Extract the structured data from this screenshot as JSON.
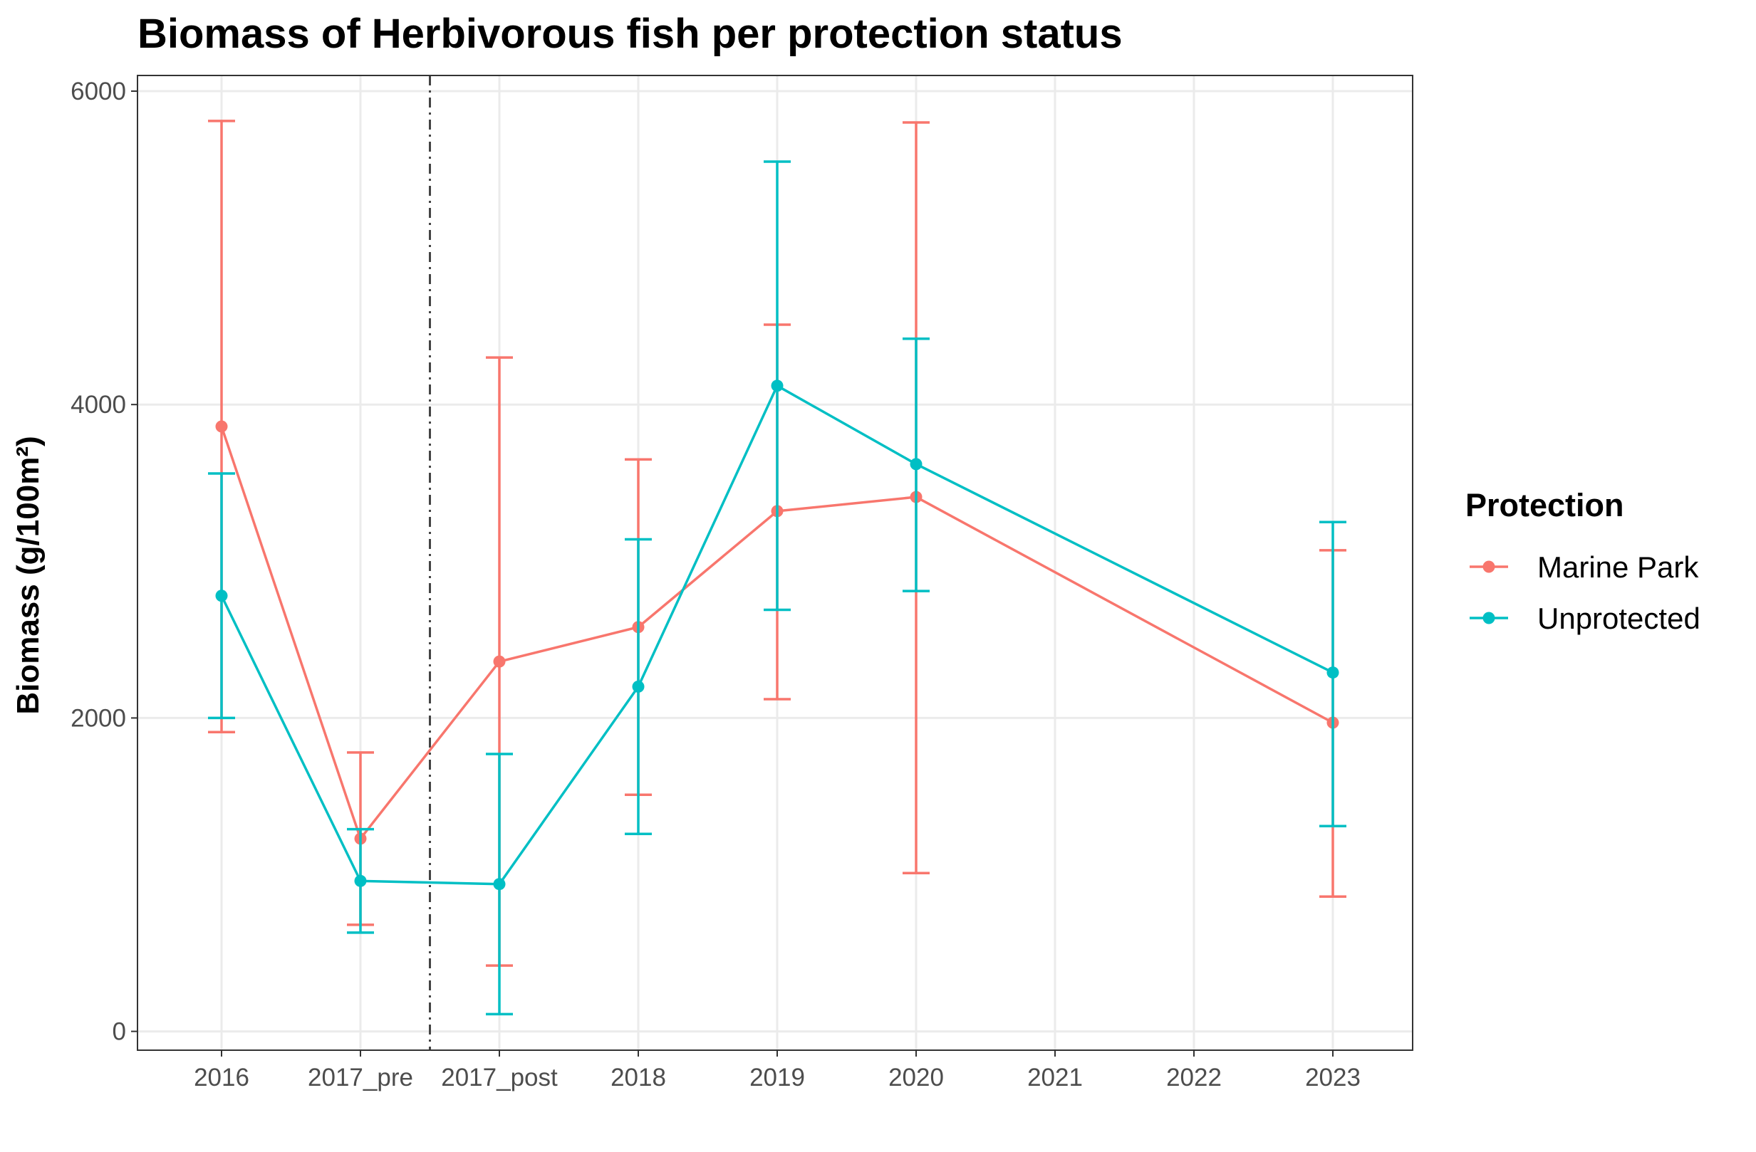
{
  "chart_data": {
    "type": "line",
    "title": "Biomass of Herbivorous fish per protection status",
    "xlabel": "",
    "ylabel": "Biomass (g/100m²)",
    "categories": [
      "2016",
      "2017_pre",
      "2017_post",
      "2018",
      "2019",
      "2020",
      "2021",
      "2022",
      "2023"
    ],
    "ylim": [
      -120,
      6100
    ],
    "yticks": [
      0,
      2000,
      4000,
      6000
    ],
    "grid": true,
    "legend": {
      "title": "Protection",
      "position": "right"
    },
    "vline": {
      "between": [
        "2017_pre",
        "2017_post"
      ],
      "style": "dashed"
    },
    "series": [
      {
        "name": "Marine Park",
        "color": "#F8766D",
        "x": [
          "2016",
          "2017_pre",
          "2017_post",
          "2018",
          "2019",
          "2020",
          "2023"
        ],
        "values": [
          3860,
          1230,
          2360,
          2580,
          3320,
          3410,
          1970
        ],
        "lower": [
          1910,
          680,
          420,
          1510,
          2120,
          1010,
          860
        ],
        "upper": [
          5810,
          1780,
          4300,
          3650,
          4510,
          5800,
          3070
        ]
      },
      {
        "name": "Unprotected",
        "color": "#00BFC4",
        "x": [
          "2016",
          "2017_pre",
          "2017_post",
          "2018",
          "2019",
          "2020",
          "2023"
        ],
        "values": [
          2780,
          960,
          940,
          2200,
          4120,
          3620,
          2290
        ],
        "lower": [
          2000,
          630,
          110,
          1260,
          2690,
          2810,
          1310
        ],
        "upper": [
          3560,
          1290,
          1770,
          3140,
          5550,
          4420,
          3250
        ]
      }
    ]
  }
}
